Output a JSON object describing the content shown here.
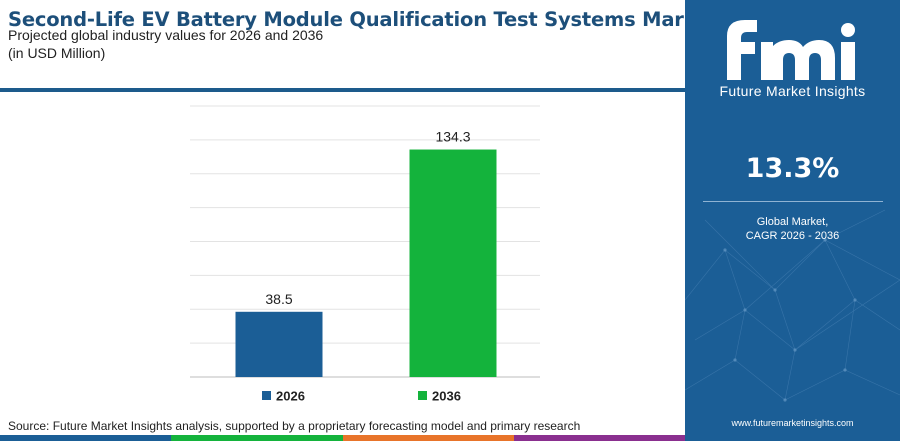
{
  "header": {
    "title": "Second-Life EV Battery Module Qualification Test Systems Market",
    "subtitle": "Projected global industry values for 2026 and 2036",
    "unit": "(in USD Million)"
  },
  "chart_data": {
    "type": "bar",
    "categories": [
      "2026",
      "2036"
    ],
    "values": [
      38.5,
      134.3
    ],
    "value_labels": [
      "38.5",
      "134.3"
    ],
    "colors": [
      "#1b5e96",
      "#14b33c"
    ],
    "legend": [
      "2026",
      "2036"
    ],
    "legend_position": "bottom",
    "ylim": [
      0,
      160
    ],
    "grid": true
  },
  "footer": {
    "source": "Source: Future Market Insights analysis, supported by a proprietary forecasting model and primary research",
    "stripe_colors": [
      "#1b5e96",
      "#14b33c",
      "#e8742a",
      "#8a2f8f"
    ]
  },
  "side_panel": {
    "logo_letters": "fmi",
    "logo_text": "Future Market Insights",
    "cagr_value": "13.3%",
    "cagr_label_line1": "Global Market,",
    "cagr_label_line2": "CAGR 2026 - 2036",
    "website": "www.futuremarketinsights.com"
  }
}
